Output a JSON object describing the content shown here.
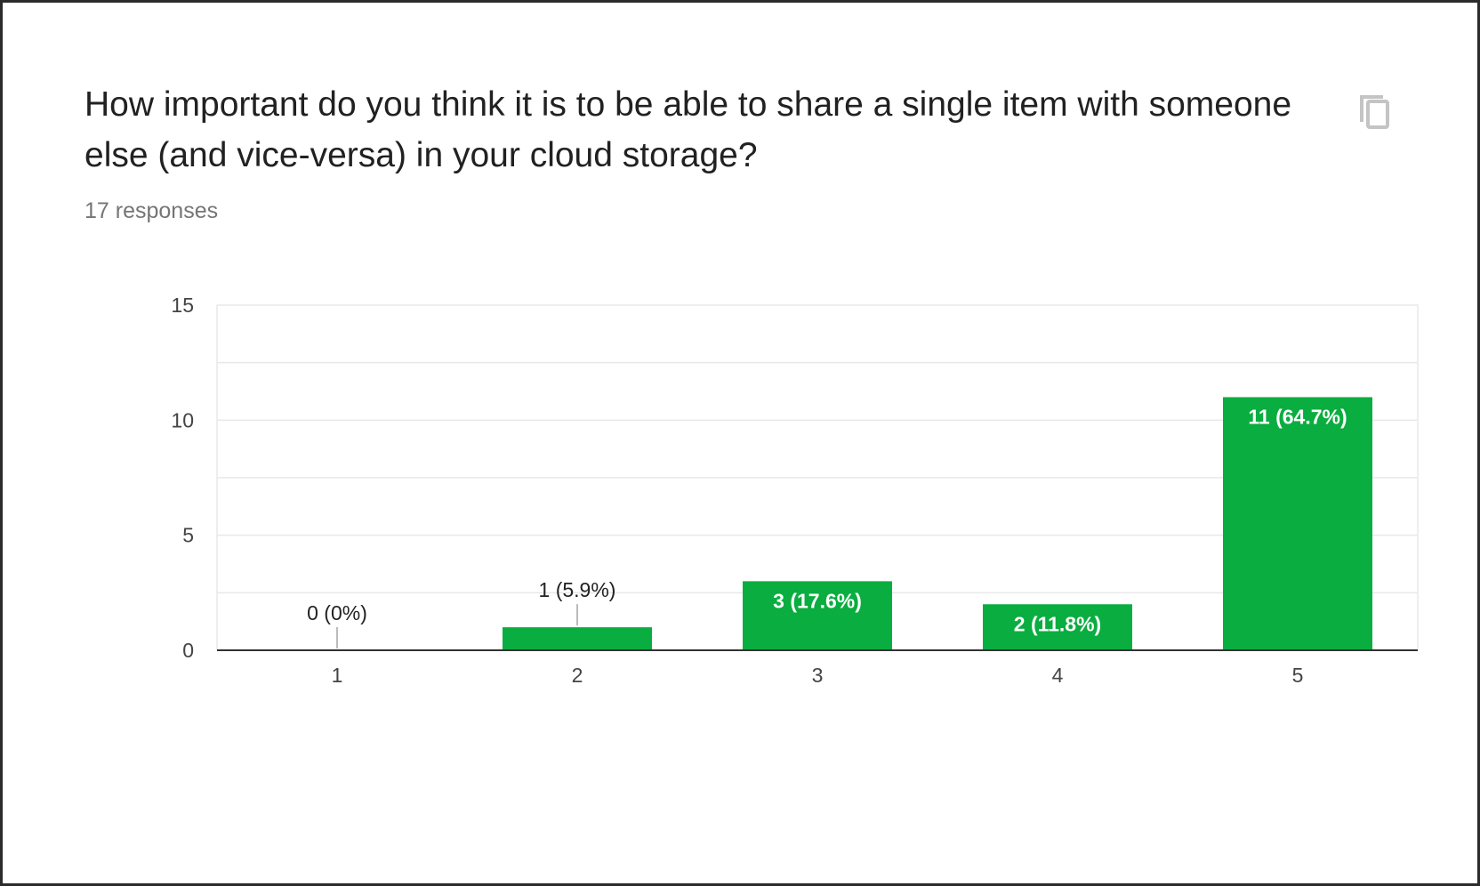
{
  "card": {
    "title": "How important do you think it is to be able to share a single item with someone else (and vice-versa) in your cloud storage?",
    "responses": "17 responses",
    "copy_icon": "copy-icon"
  },
  "colors": {
    "bar": "#0aad3f",
    "grid": "#e8e8e8",
    "axis": "#333333"
  },
  "chart_data": {
    "type": "bar",
    "categories": [
      "1",
      "2",
      "3",
      "4",
      "5"
    ],
    "values": [
      0,
      1,
      3,
      2,
      11
    ],
    "data_labels": [
      "0 (0%)",
      "1 (5.9%)",
      "3 (17.6%)",
      "2 (11.8%)",
      "11 (64.7%)"
    ],
    "y_ticks": [
      "0",
      "5",
      "10",
      "15"
    ],
    "ylim": [
      0,
      15
    ],
    "grid": true,
    "legend": "none"
  }
}
